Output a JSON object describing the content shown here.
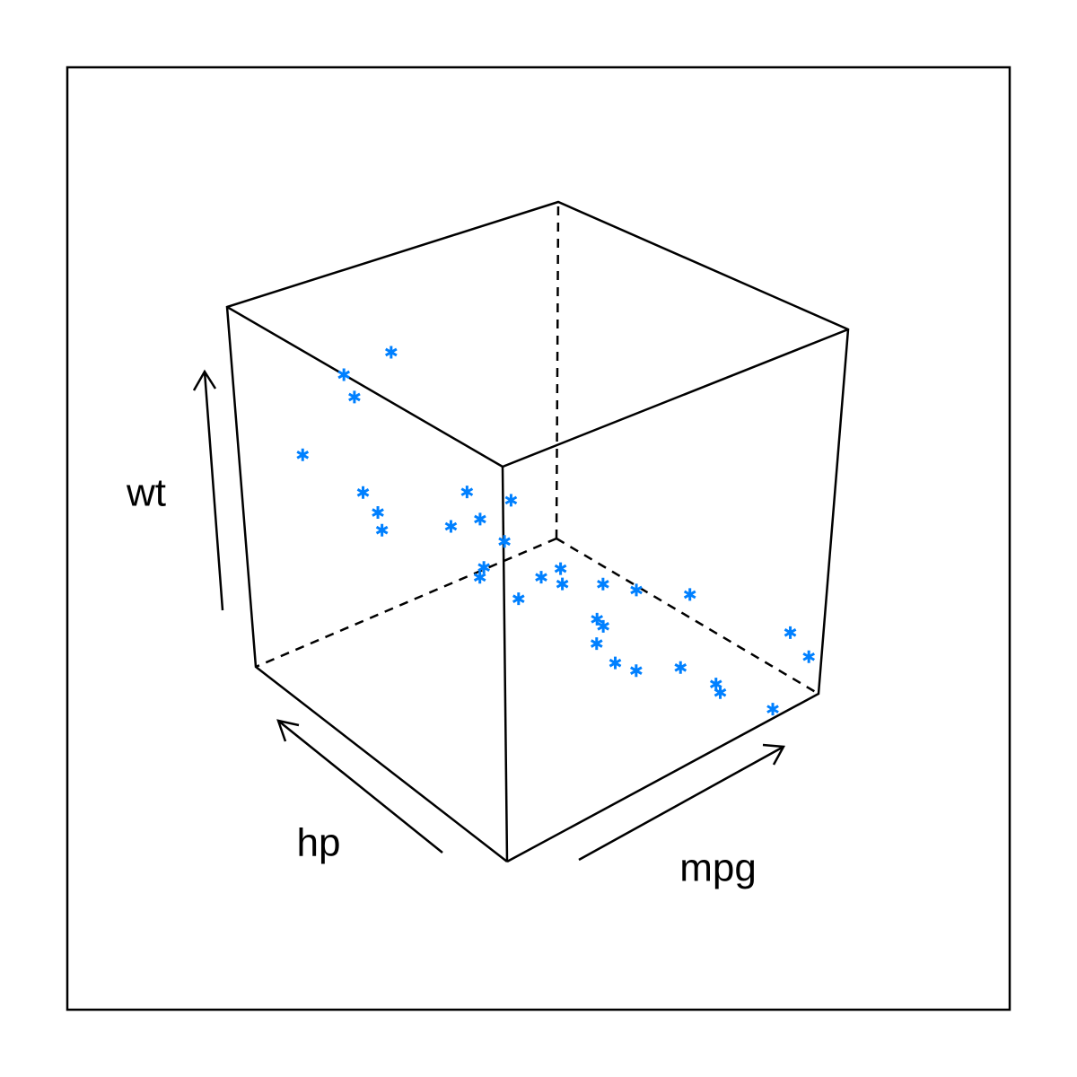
{
  "chart_data": {
    "type": "cloud",
    "x_label": "mpg",
    "y_label": "hp",
    "z_label": "wt",
    "color": "#0080ff",
    "xlim": [
      10.4,
      33.9
    ],
    "ylim": [
      52,
      335
    ],
    "zlim": [
      1.513,
      5.424
    ],
    "x": [
      21,
      21,
      22.8,
      21.4,
      18.7,
      18.1,
      14.3,
      24.4,
      22.8,
      19.2,
      17.8,
      16.4,
      17.3,
      15.2,
      10.4,
      10.4,
      14.7,
      32.4,
      30.4,
      33.9,
      21.5,
      15.5,
      15.2,
      13.3,
      19.2,
      27.3,
      26,
      30.4,
      15.8,
      19.7,
      15,
      21.4
    ],
    "y": [
      110,
      110,
      93,
      110,
      175,
      105,
      245,
      62,
      95,
      123,
      123,
      180,
      180,
      180,
      205,
      215,
      230,
      66,
      52,
      65,
      97,
      150,
      150,
      245,
      175,
      66,
      91,
      113,
      264,
      175,
      335,
      109
    ],
    "z": [
      2.62,
      2.875,
      2.32,
      3.215,
      3.44,
      3.46,
      3.57,
      3.19,
      3.15,
      3.44,
      3.44,
      4.07,
      3.73,
      3.78,
      5.25,
      5.424,
      5.345,
      2.2,
      1.615,
      1.835,
      2.465,
      3.52,
      3.435,
      3.84,
      3.845,
      1.935,
      2.14,
      1.513,
      3.17,
      2.77,
      3.57,
      2.78
    ]
  }
}
